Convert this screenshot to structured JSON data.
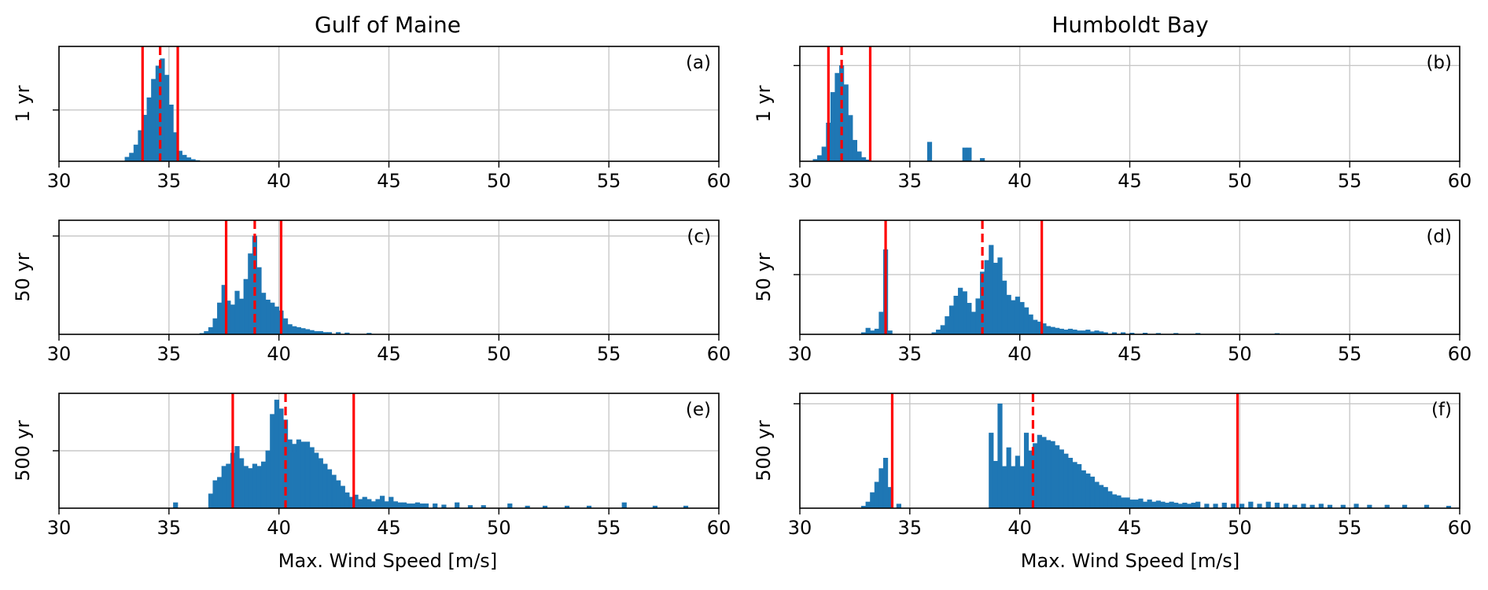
{
  "figure": {
    "columns": [
      "Gulf of Maine",
      "Humboldt Bay"
    ],
    "row_labels": [
      "1 yr",
      "50 yr",
      "500 yr"
    ],
    "xlabel": "Max. Wind Speed [m/s]",
    "xlim": [
      30,
      60
    ],
    "xticks": [
      "30",
      "35",
      "40",
      "45",
      "50",
      "55",
      "60"
    ]
  },
  "colors": {
    "bars": "#1f77b4",
    "lines": "#ff0000",
    "grid": "#c8c8c8",
    "axes": "#000000"
  },
  "chart_data": [
    {
      "type": "bar",
      "panel": "(a)",
      "column_title": "Gulf of Maine",
      "ylabel": "1 yr",
      "xlabel": "",
      "xlim": [
        30,
        60
      ],
      "bin_width": 0.2,
      "bins": [
        [
          33.0,
          0.04
        ],
        [
          33.2,
          0.08
        ],
        [
          33.4,
          0.16
        ],
        [
          33.6,
          0.3
        ],
        [
          33.8,
          0.45
        ],
        [
          34.0,
          0.62
        ],
        [
          34.2,
          0.8
        ],
        [
          34.4,
          0.93
        ],
        [
          34.6,
          1.0
        ],
        [
          34.8,
          0.84
        ],
        [
          35.0,
          0.55
        ],
        [
          35.2,
          0.28
        ],
        [
          35.4,
          0.1
        ],
        [
          35.6,
          0.06
        ],
        [
          35.8,
          0.035
        ],
        [
          36.0,
          0.018
        ],
        [
          36.2,
          0.008
        ]
      ],
      "ylim": [
        0,
        1.12
      ],
      "y_gridlines": [
        0.5
      ],
      "solid_lines": [
        33.8,
        35.4
      ],
      "dashed_lines": [
        34.6
      ]
    },
    {
      "type": "bar",
      "panel": "(b)",
      "column_title": "Humboldt Bay",
      "ylabel": "1 yr",
      "xlabel": "",
      "xlim": [
        30,
        60
      ],
      "bin_width": 0.2,
      "bins": [
        [
          30.6,
          0.02
        ],
        [
          30.8,
          0.06
        ],
        [
          31.0,
          0.15
        ],
        [
          31.2,
          0.4
        ],
        [
          31.4,
          0.72
        ],
        [
          31.6,
          0.92
        ],
        [
          31.8,
          1.0
        ],
        [
          32.0,
          0.8
        ],
        [
          32.2,
          0.48
        ],
        [
          32.4,
          0.22
        ],
        [
          32.6,
          0.1
        ],
        [
          32.8,
          0.04
        ],
        [
          33.0,
          0.015
        ],
        [
          35.8,
          0.2
        ],
        [
          37.4,
          0.14
        ],
        [
          37.6,
          0.14
        ],
        [
          38.2,
          0.03
        ]
      ],
      "ylim": [
        0,
        1.2
      ],
      "y_gridlines": [
        1.0
      ],
      "solid_lines": [
        31.3,
        33.2
      ],
      "dashed_lines": [
        31.9
      ]
    },
    {
      "type": "bar",
      "panel": "(c)",
      "column_title": "Gulf of Maine",
      "ylabel": "50 yr",
      "xlabel": "",
      "xlim": [
        30,
        60
      ],
      "bin_width": 0.2,
      "bins": [
        [
          36.4,
          0.01
        ],
        [
          36.6,
          0.03
        ],
        [
          36.8,
          0.07
        ],
        [
          37.0,
          0.16
        ],
        [
          37.2,
          0.32
        ],
        [
          37.4,
          0.5
        ],
        [
          37.6,
          0.34
        ],
        [
          37.8,
          0.3
        ],
        [
          38.0,
          0.44
        ],
        [
          38.2,
          0.36
        ],
        [
          38.4,
          0.56
        ],
        [
          38.6,
          0.82
        ],
        [
          38.8,
          1.0
        ],
        [
          39.0,
          0.68
        ],
        [
          39.2,
          0.42
        ],
        [
          39.4,
          0.35
        ],
        [
          39.6,
          0.32
        ],
        [
          39.8,
          0.28
        ],
        [
          40.0,
          0.24
        ],
        [
          40.2,
          0.16
        ],
        [
          40.4,
          0.1
        ],
        [
          40.6,
          0.08
        ],
        [
          40.8,
          0.07
        ],
        [
          41.0,
          0.06
        ],
        [
          41.2,
          0.05
        ],
        [
          41.4,
          0.04
        ],
        [
          41.6,
          0.03
        ],
        [
          41.8,
          0.03
        ],
        [
          42.0,
          0.02
        ],
        [
          42.2,
          0.02
        ],
        [
          42.6,
          0.02
        ],
        [
          43.0,
          0.015
        ],
        [
          44.0,
          0.012
        ]
      ],
      "ylim": [
        0,
        1.16
      ],
      "y_gridlines": [
        1.0
      ],
      "solid_lines": [
        37.6,
        40.1
      ],
      "dashed_lines": [
        38.9
      ]
    },
    {
      "type": "bar",
      "panel": "(d)",
      "column_title": "Humboldt Bay",
      "ylabel": "50 yr",
      "xlabel": "",
      "xlim": [
        30,
        60
      ],
      "bin_width": 0.2,
      "bins": [
        [
          32.8,
          0.02
        ],
        [
          33.0,
          0.07
        ],
        [
          33.2,
          0.04
        ],
        [
          33.4,
          0.06
        ],
        [
          33.6,
          0.25
        ],
        [
          33.8,
          0.95
        ],
        [
          34.0,
          0.04
        ],
        [
          36.0,
          0.02
        ],
        [
          36.2,
          0.05
        ],
        [
          36.4,
          0.1
        ],
        [
          36.6,
          0.2
        ],
        [
          36.8,
          0.32
        ],
        [
          37.0,
          0.43
        ],
        [
          37.2,
          0.52
        ],
        [
          37.4,
          0.48
        ],
        [
          37.6,
          0.35
        ],
        [
          37.8,
          0.25
        ],
        [
          38.0,
          0.4
        ],
        [
          38.2,
          0.7
        ],
        [
          38.4,
          0.83
        ],
        [
          38.6,
          1.0
        ],
        [
          38.8,
          0.8
        ],
        [
          39.0,
          0.86
        ],
        [
          39.2,
          0.6
        ],
        [
          39.4,
          0.44
        ],
        [
          39.6,
          0.38
        ],
        [
          39.8,
          0.42
        ],
        [
          40.0,
          0.36
        ],
        [
          40.2,
          0.3
        ],
        [
          40.4,
          0.22
        ],
        [
          40.6,
          0.16
        ],
        [
          40.8,
          0.14
        ],
        [
          41.0,
          0.12
        ],
        [
          41.2,
          0.09
        ],
        [
          41.4,
          0.08
        ],
        [
          41.6,
          0.07
        ],
        [
          41.8,
          0.06
        ],
        [
          42.0,
          0.05
        ],
        [
          42.2,
          0.06
        ],
        [
          42.4,
          0.05
        ],
        [
          42.6,
          0.04
        ],
        [
          42.8,
          0.04
        ],
        [
          43.0,
          0.05
        ],
        [
          43.2,
          0.03
        ],
        [
          43.4,
          0.04
        ],
        [
          43.6,
          0.03
        ],
        [
          43.8,
          0.02
        ],
        [
          44.2,
          0.02
        ],
        [
          44.6,
          0.02
        ],
        [
          45.0,
          0.015
        ],
        [
          45.6,
          0.015
        ],
        [
          46.2,
          0.012
        ],
        [
          47.0,
          0.012
        ],
        [
          48.0,
          0.012
        ],
        [
          51.6,
          0.01
        ]
      ],
      "ylim": [
        0,
        1.28
      ],
      "y_gridlines": [
        0.67
      ],
      "solid_lines": [
        33.9,
        41.0
      ],
      "dashed_lines": [
        38.3
      ]
    },
    {
      "type": "bar",
      "panel": "(e)",
      "column_title": "Gulf of Maine",
      "ylabel": "500 yr",
      "xlabel": "Max. Wind Speed [m/s]",
      "xlim": [
        30,
        60
      ],
      "bin_width": 0.2,
      "bins": [
        [
          35.2,
          0.05
        ],
        [
          36.8,
          0.13
        ],
        [
          37.0,
          0.25
        ],
        [
          37.2,
          0.28
        ],
        [
          37.4,
          0.38
        ],
        [
          37.6,
          0.4
        ],
        [
          37.8,
          0.5
        ],
        [
          38.0,
          0.56
        ],
        [
          38.2,
          0.45
        ],
        [
          38.4,
          0.38
        ],
        [
          38.6,
          0.36
        ],
        [
          38.8,
          0.4
        ],
        [
          39.0,
          0.38
        ],
        [
          39.2,
          0.42
        ],
        [
          39.4,
          0.52
        ],
        [
          39.6,
          0.85
        ],
        [
          39.8,
          0.98
        ],
        [
          40.0,
          0.9
        ],
        [
          40.2,
          0.8
        ],
        [
          40.4,
          0.62
        ],
        [
          40.6,
          0.58
        ],
        [
          40.8,
          0.62
        ],
        [
          41.0,
          0.6
        ],
        [
          41.2,
          0.6
        ],
        [
          41.4,
          0.55
        ],
        [
          41.6,
          0.5
        ],
        [
          41.8,
          0.45
        ],
        [
          42.0,
          0.4
        ],
        [
          42.2,
          0.35
        ],
        [
          42.4,
          0.3
        ],
        [
          42.6,
          0.25
        ],
        [
          42.8,
          0.2
        ],
        [
          43.0,
          0.14
        ],
        [
          43.2,
          0.1
        ],
        [
          43.4,
          0.12
        ],
        [
          43.6,
          0.08
        ],
        [
          43.8,
          0.1
        ],
        [
          44.0,
          0.08
        ],
        [
          44.2,
          0.06
        ],
        [
          44.4,
          0.08
        ],
        [
          44.6,
          0.11
        ],
        [
          44.8,
          0.06
        ],
        [
          45.0,
          0.1
        ],
        [
          45.2,
          0.06
        ],
        [
          45.4,
          0.05
        ],
        [
          45.6,
          0.05
        ],
        [
          45.8,
          0.04
        ],
        [
          46.0,
          0.04
        ],
        [
          46.2,
          0.05
        ],
        [
          46.4,
          0.04
        ],
        [
          46.6,
          0.04
        ],
        [
          47.0,
          0.04
        ],
        [
          47.4,
          0.03
        ],
        [
          48.0,
          0.05
        ],
        [
          48.6,
          0.025
        ],
        [
          49.2,
          0.025
        ],
        [
          50.4,
          0.04
        ],
        [
          51.2,
          0.02
        ],
        [
          52.0,
          0.02
        ],
        [
          53.0,
          0.02
        ],
        [
          54.0,
          0.02
        ],
        [
          55.6,
          0.05
        ],
        [
          57.0,
          0.02
        ],
        [
          58.4,
          0.02
        ]
      ],
      "ylim": [
        0,
        1.04
      ],
      "y_gridlines": [
        0.52
      ],
      "solid_lines": [
        37.9,
        43.4
      ],
      "dashed_lines": [
        40.3
      ]
    },
    {
      "type": "bar",
      "panel": "(f)",
      "column_title": "Humboldt Bay",
      "ylabel": "500 yr",
      "xlabel": "Max. Wind Speed [m/s]",
      "xlim": [
        30,
        60
      ],
      "bin_width": 0.2,
      "bins": [
        [
          32.8,
          0.02
        ],
        [
          33.0,
          0.06
        ],
        [
          33.2,
          0.15
        ],
        [
          33.4,
          0.25
        ],
        [
          33.6,
          0.38
        ],
        [
          33.8,
          0.48
        ],
        [
          34.0,
          0.2
        ],
        [
          34.4,
          0.04
        ],
        [
          38.6,
          0.72
        ],
        [
          38.8,
          0.45
        ],
        [
          39.0,
          1.0
        ],
        [
          39.2,
          0.4
        ],
        [
          39.4,
          0.58
        ],
        [
          39.6,
          0.4
        ],
        [
          39.8,
          0.5
        ],
        [
          40.0,
          0.4
        ],
        [
          40.2,
          0.72
        ],
        [
          40.4,
          0.55
        ],
        [
          40.6,
          0.62
        ],
        [
          40.8,
          0.7
        ],
        [
          41.0,
          0.68
        ],
        [
          41.2,
          0.65
        ],
        [
          41.4,
          0.64
        ],
        [
          41.6,
          0.6
        ],
        [
          41.8,
          0.56
        ],
        [
          42.0,
          0.52
        ],
        [
          42.2,
          0.48
        ],
        [
          42.4,
          0.44
        ],
        [
          42.6,
          0.42
        ],
        [
          42.8,
          0.36
        ],
        [
          43.0,
          0.33
        ],
        [
          43.2,
          0.3
        ],
        [
          43.4,
          0.25
        ],
        [
          43.6,
          0.22
        ],
        [
          43.8,
          0.2
        ],
        [
          44.0,
          0.16
        ],
        [
          44.2,
          0.13
        ],
        [
          44.4,
          0.12
        ],
        [
          44.6,
          0.1
        ],
        [
          44.8,
          0.1
        ],
        [
          45.0,
          0.08
        ],
        [
          45.2,
          0.08
        ],
        [
          45.4,
          0.09
        ],
        [
          45.6,
          0.06
        ],
        [
          45.8,
          0.08
        ],
        [
          46.0,
          0.06
        ],
        [
          46.2,
          0.07
        ],
        [
          46.4,
          0.06
        ],
        [
          46.6,
          0.05
        ],
        [
          46.8,
          0.06
        ],
        [
          47.0,
          0.05
        ],
        [
          47.2,
          0.04
        ],
        [
          47.4,
          0.05
        ],
        [
          47.6,
          0.04
        ],
        [
          47.8,
          0.05
        ],
        [
          48.0,
          0.06
        ],
        [
          48.4,
          0.04
        ],
        [
          48.8,
          0.04
        ],
        [
          49.2,
          0.05
        ],
        [
          49.6,
          0.04
        ],
        [
          50.0,
          0.04
        ],
        [
          50.4,
          0.06
        ],
        [
          50.8,
          0.04
        ],
        [
          51.2,
          0.06
        ],
        [
          51.6,
          0.05
        ],
        [
          52.0,
          0.04
        ],
        [
          52.4,
          0.03
        ],
        [
          52.8,
          0.04
        ],
        [
          53.2,
          0.03
        ],
        [
          53.6,
          0.04
        ],
        [
          54.0,
          0.03
        ],
        [
          54.6,
          0.03
        ],
        [
          55.2,
          0.04
        ],
        [
          55.8,
          0.03
        ],
        [
          56.6,
          0.03
        ],
        [
          57.4,
          0.03
        ],
        [
          58.4,
          0.03
        ],
        [
          59.4,
          0.02
        ]
      ],
      "ylim": [
        0,
        1.1
      ],
      "y_gridlines": [
        1.0
      ],
      "solid_lines": [
        34.2,
        49.9
      ],
      "dashed_lines": [
        40.6
      ]
    }
  ]
}
